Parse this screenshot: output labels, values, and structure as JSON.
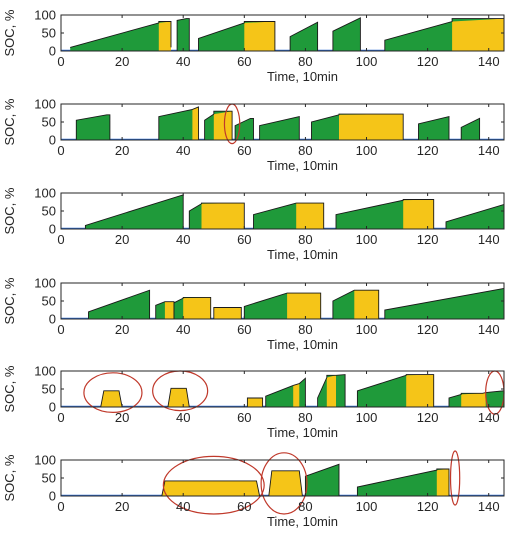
{
  "colors": {
    "charging": "#1f9a3a",
    "full": "#f5c518",
    "outline": "#1a1a1a",
    "baseline": "#2e6fd6",
    "highlight": "#c0392b"
  },
  "chart_data": [
    {
      "type": "area",
      "xlabel": "Time, 10min",
      "ylabel": "SOC, %",
      "xlim": [
        0,
        145
      ],
      "ylim": [
        0,
        100
      ],
      "xticks": [
        0,
        20,
        40,
        60,
        80,
        100,
        120,
        140
      ],
      "yticks": [
        0,
        50,
        100
      ],
      "sessions": [
        {
          "x": [
            3,
            32,
            32,
            36,
            36
          ],
          "y": [
            10,
            78,
            82,
            82,
            10
          ],
          "yellow": [
            32,
            36
          ]
        },
        {
          "x": [
            38,
            38,
            41,
            42,
            42
          ],
          "y": [
            0,
            85,
            90,
            90,
            0
          ]
        },
        {
          "x": [
            45,
            45,
            60,
            60,
            70,
            70
          ],
          "y": [
            0,
            35,
            78,
            82,
            82,
            0
          ],
          "yellow": [
            60,
            70
          ]
        },
        {
          "x": [
            75,
            75,
            84,
            84
          ],
          "y": [
            0,
            40,
            80,
            0
          ]
        },
        {
          "x": [
            89,
            89,
            98,
            98
          ],
          "y": [
            0,
            55,
            92,
            0
          ]
        },
        {
          "x": [
            106,
            106,
            128,
            128,
            145,
            145
          ],
          "y": [
            0,
            30,
            82,
            90,
            90,
            0
          ],
          "yellow": [
            128,
            145
          ]
        }
      ],
      "highlights": []
    },
    {
      "type": "area",
      "xlabel": "Time, 10min",
      "ylabel": "SOC, %",
      "xlim": [
        0,
        145
      ],
      "ylim": [
        0,
        100
      ],
      "xticks": [
        0,
        20,
        40,
        60,
        80,
        100,
        120,
        140
      ],
      "yticks": [
        0,
        50,
        100
      ],
      "sessions": [
        {
          "x": [
            5,
            5,
            15,
            16,
            16
          ],
          "y": [
            0,
            55,
            70,
            70,
            0
          ]
        },
        {
          "x": [
            32,
            32,
            43,
            45,
            45
          ],
          "y": [
            0,
            65,
            85,
            92,
            0
          ],
          "yellow": [
            43,
            45
          ]
        },
        {
          "x": [
            47,
            47,
            50,
            50,
            56,
            56
          ],
          "y": [
            0,
            55,
            72,
            80,
            80,
            0
          ],
          "yellow": [
            50,
            56
          ]
        },
        {
          "x": [
            57,
            57,
            62,
            63,
            63
          ],
          "y": [
            0,
            40,
            60,
            60,
            0
          ]
        },
        {
          "x": [
            65,
            65,
            78,
            78
          ],
          "y": [
            0,
            40,
            65,
            0
          ]
        },
        {
          "x": [
            82,
            82,
            91,
            91,
            112,
            112
          ],
          "y": [
            0,
            50,
            70,
            72,
            72,
            0
          ],
          "yellow": [
            91,
            112
          ]
        },
        {
          "x": [
            117,
            117,
            127,
            127
          ],
          "y": [
            0,
            45,
            65,
            0
          ]
        },
        {
          "x": [
            131,
            131,
            137,
            137
          ],
          "y": [
            0,
            35,
            60,
            0
          ]
        }
      ],
      "highlights": [
        {
          "cx": 56,
          "cy": 45,
          "rx": 2.5,
          "ry": 55
        }
      ]
    },
    {
      "type": "area",
      "xlabel": "Time, 10min",
      "ylabel": "SOC, %",
      "xlim": [
        0,
        145
      ],
      "ylim": [
        0,
        100
      ],
      "xticks": [
        0,
        20,
        40,
        60,
        80,
        100,
        120,
        140
      ],
      "yticks": [
        0,
        50,
        100
      ],
      "sessions": [
        {
          "x": [
            8,
            8,
            40,
            40
          ],
          "y": [
            0,
            10,
            95,
            0
          ]
        },
        {
          "x": [
            42,
            42,
            46,
            46,
            60,
            60
          ],
          "y": [
            0,
            50,
            70,
            72,
            72,
            0
          ],
          "yellow": [
            46,
            60
          ]
        },
        {
          "x": [
            63,
            63,
            77,
            77,
            86,
            86
          ],
          "y": [
            0,
            40,
            72,
            72,
            72,
            0
          ],
          "yellow": [
            77,
            86
          ]
        },
        {
          "x": [
            90,
            90,
            112,
            112,
            122,
            122
          ],
          "y": [
            0,
            40,
            80,
            82,
            82,
            0
          ],
          "yellow": [
            112,
            122
          ]
        },
        {
          "x": [
            126,
            126,
            145,
            145
          ],
          "y": [
            0,
            20,
            68,
            0
          ]
        }
      ],
      "highlights": []
    },
    {
      "type": "area",
      "xlabel": "Time, 10min",
      "ylabel": "SOC, %",
      "xlim": [
        0,
        145
      ],
      "ylim": [
        0,
        100
      ],
      "xticks": [
        0,
        20,
        40,
        60,
        80,
        100,
        120,
        140
      ],
      "yticks": [
        0,
        50,
        100
      ],
      "sessions": [
        {
          "x": [
            9,
            9,
            29,
            29
          ],
          "y": [
            0,
            20,
            80,
            0
          ]
        },
        {
          "x": [
            31,
            31,
            34,
            34,
            37,
            37
          ],
          "y": [
            0,
            38,
            48,
            48,
            48,
            0
          ],
          "yellow": [
            34,
            37
          ]
        },
        {
          "x": [
            37,
            37,
            40,
            40,
            49,
            49
          ],
          "y": [
            0,
            45,
            58,
            60,
            60,
            0
          ],
          "yellow": [
            40,
            49
          ]
        },
        {
          "x": [
            50,
            50,
            59,
            59
          ],
          "y": [
            0,
            32,
            32,
            0
          ],
          "yellow": [
            50,
            59
          ]
        },
        {
          "x": [
            60,
            60,
            74,
            74,
            85,
            85
          ],
          "y": [
            0,
            35,
            72,
            72,
            72,
            0
          ],
          "yellow": [
            74,
            85
          ]
        },
        {
          "x": [
            89,
            89,
            96,
            96,
            104,
            104
          ],
          "y": [
            0,
            50,
            80,
            80,
            80,
            0
          ],
          "yellow": [
            96,
            104
          ]
        },
        {
          "x": [
            106,
            106,
            145,
            145
          ],
          "y": [
            0,
            25,
            85,
            0
          ]
        }
      ],
      "highlights": []
    },
    {
      "type": "area",
      "xlabel": "Time, 10min",
      "ylabel": "SOC, %",
      "xlim": [
        0,
        145
      ],
      "ylim": [
        0,
        100
      ],
      "xticks": [
        0,
        20,
        40,
        60,
        80,
        100,
        120,
        140
      ],
      "yticks": [
        0,
        50,
        100
      ],
      "sessions": [
        {
          "x": [
            13,
            14,
            19,
            20
          ],
          "y": [
            0,
            45,
            45,
            0
          ],
          "yellow": [
            13,
            20
          ]
        },
        {
          "x": [
            35,
            36,
            41,
            42
          ],
          "y": [
            0,
            52,
            52,
            0
          ],
          "yellow": [
            35,
            42
          ]
        },
        {
          "x": [
            61,
            61,
            66,
            66
          ],
          "y": [
            0,
            25,
            25,
            0
          ],
          "yellow": [
            61,
            66
          ]
        },
        {
          "x": [
            67,
            67,
            76,
            76,
            78,
            78,
            80,
            80
          ],
          "y": [
            0,
            30,
            60,
            60,
            65,
            65,
            80,
            0
          ],
          "yellow": [
            76,
            78
          ]
        },
        {
          "x": [
            84,
            84,
            87,
            87,
            90,
            90,
            93,
            93
          ],
          "y": [
            0,
            25,
            82,
            88,
            88,
            88,
            90,
            0
          ],
          "yellow": [
            87,
            90
          ]
        },
        {
          "x": [
            97,
            97,
            113,
            113,
            122,
            122
          ],
          "y": [
            0,
            45,
            88,
            90,
            90,
            0
          ],
          "yellow": [
            113,
            122
          ]
        },
        {
          "x": [
            127,
            127,
            131,
            131,
            138,
            139,
            145,
            145
          ],
          "y": [
            0,
            25,
            35,
            38,
            38,
            40,
            45,
            0
          ],
          "yellow": [
            131,
            139
          ]
        }
      ],
      "highlights": [
        {
          "cx": 17,
          "cy": 40,
          "rx": 9.5,
          "ry": 55
        },
        {
          "cx": 39,
          "cy": 45,
          "rx": 9,
          "ry": 55
        },
        {
          "cx": 142,
          "cy": 40,
          "rx": 3,
          "ry": 60
        }
      ]
    },
    {
      "type": "area",
      "xlabel": "Time, 10min",
      "ylabel": "SOC, %",
      "xlim": [
        0,
        145
      ],
      "ylim": [
        0,
        100
      ],
      "xticks": [
        0,
        20,
        40,
        60,
        80,
        100,
        120,
        140
      ],
      "yticks": [
        0,
        50,
        100
      ],
      "sessions": [
        {
          "x": [
            33,
            34,
            64,
            65
          ],
          "y": [
            0,
            42,
            42,
            0
          ],
          "yellow": [
            33,
            65
          ]
        },
        {
          "x": [
            68,
            69,
            78,
            79
          ],
          "y": [
            0,
            70,
            70,
            0
          ],
          "yellow": [
            68,
            79
          ]
        },
        {
          "x": [
            80,
            80,
            91,
            91
          ],
          "y": [
            0,
            55,
            88,
            0
          ]
        },
        {
          "x": [
            97,
            97,
            123,
            123,
            127,
            127
          ],
          "y": [
            0,
            25,
            72,
            75,
            75,
            0
          ],
          "yellow": [
            123,
            127
          ]
        }
      ],
      "highlights": [
        {
          "cx": 50,
          "cy": 30,
          "rx": 16.5,
          "ry": 80
        },
        {
          "cx": 73,
          "cy": 35,
          "rx": 7.5,
          "ry": 85
        },
        {
          "cx": 129,
          "cy": 50,
          "rx": 1.5,
          "ry": 75
        }
      ]
    }
  ]
}
